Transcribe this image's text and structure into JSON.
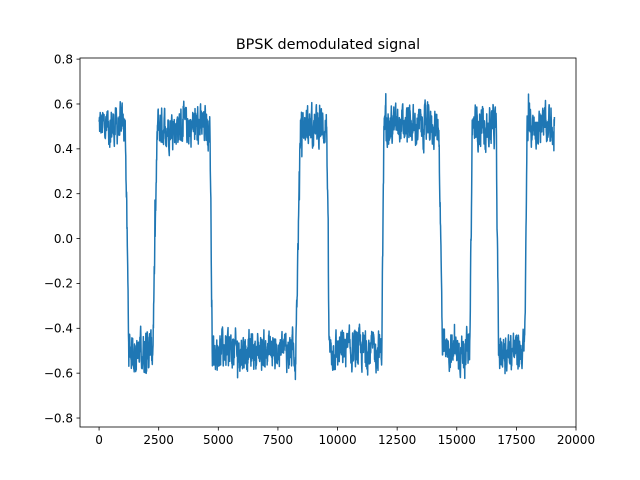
{
  "chart_data": {
    "type": "line",
    "title": "BPSK demodulated signal",
    "xlabel": "",
    "ylabel": "",
    "xlim": [
      -800,
      20000
    ],
    "ylim": [
      -0.84,
      0.805
    ],
    "grid": false,
    "legend": "none",
    "line_color": "#1f77b4",
    "x_ticks": [
      0,
      2500,
      5000,
      7500,
      10000,
      12500,
      15000,
      17500,
      20000
    ],
    "x_tick_labels": [
      "0",
      "2500",
      "5000",
      "7500",
      "10000",
      "12500",
      "15000",
      "17500",
      "20000"
    ],
    "y_ticks": [
      -0.8,
      -0.6,
      -0.4,
      -0.2,
      0.0,
      0.2,
      0.4,
      0.6,
      0.8
    ],
    "y_tick_labels": [
      "−0.8",
      "−0.6",
      "−0.4",
      "−0.2",
      "0.0",
      "0.2",
      "0.4",
      "0.6",
      "0.8"
    ],
    "series": [
      {
        "n_samples": 19200,
        "amplitude": 0.5,
        "noise_peak": 0.15,
        "x": [
          0,
          1100,
          1250,
          2250,
          2450,
          4650,
          4750,
          8250,
          8450,
          9550,
          9650,
          11850,
          11950,
          14250,
          14400,
          15550,
          15650,
          16650,
          16750,
          17850,
          17950,
          19100
        ],
        "y": [
          0.5,
          0.5,
          -0.5,
          -0.5,
          0.5,
          0.5,
          -0.5,
          -0.5,
          0.5,
          0.5,
          -0.5,
          -0.5,
          0.5,
          0.5,
          -0.5,
          -0.5,
          0.5,
          0.5,
          -0.5,
          -0.5,
          0.5,
          0.5
        ]
      }
    ]
  }
}
